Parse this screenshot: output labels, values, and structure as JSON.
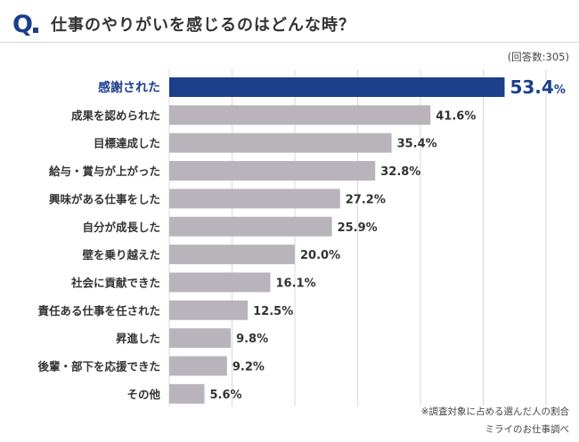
{
  "header": {
    "q_label": "Q",
    "question": "仕事のやりがいを感じるのはどんな時？"
  },
  "respondents": "(回答数:305)",
  "footnotes": {
    "note": "※調査対象に占める選んだ人の割合",
    "source": "ミライのお仕事調べ"
  },
  "colors": {
    "accent": "#1c3f8c",
    "bar": "#b9b4bc",
    "grid": "#d9d9d9"
  },
  "chart_data": {
    "type": "bar",
    "orientation": "horizontal",
    "unit": "%",
    "xlim": [
      0,
      60
    ],
    "grid": true,
    "highlight_index": 0,
    "categories": [
      "感謝された",
      "成果を認められた",
      "目標達成した",
      "給与・賞与が上がった",
      "興味がある仕事をした",
      "自分が成長した",
      "壁を乗り越えた",
      "社会に貢献できた",
      "責任ある仕事を任された",
      "昇進した",
      "後輩・部下を応援できた",
      "その他"
    ],
    "values": [
      53.4,
      41.6,
      35.4,
      32.8,
      27.2,
      25.9,
      20.0,
      16.1,
      12.5,
      9.8,
      9.2,
      5.6
    ],
    "value_labels": [
      "53.4",
      "41.6%",
      "35.4%",
      "32.8%",
      "27.2%",
      "25.9%",
      "20.0%",
      "16.1%",
      "12.5%",
      "9.8%",
      "9.2%",
      "5.6%"
    ]
  }
}
